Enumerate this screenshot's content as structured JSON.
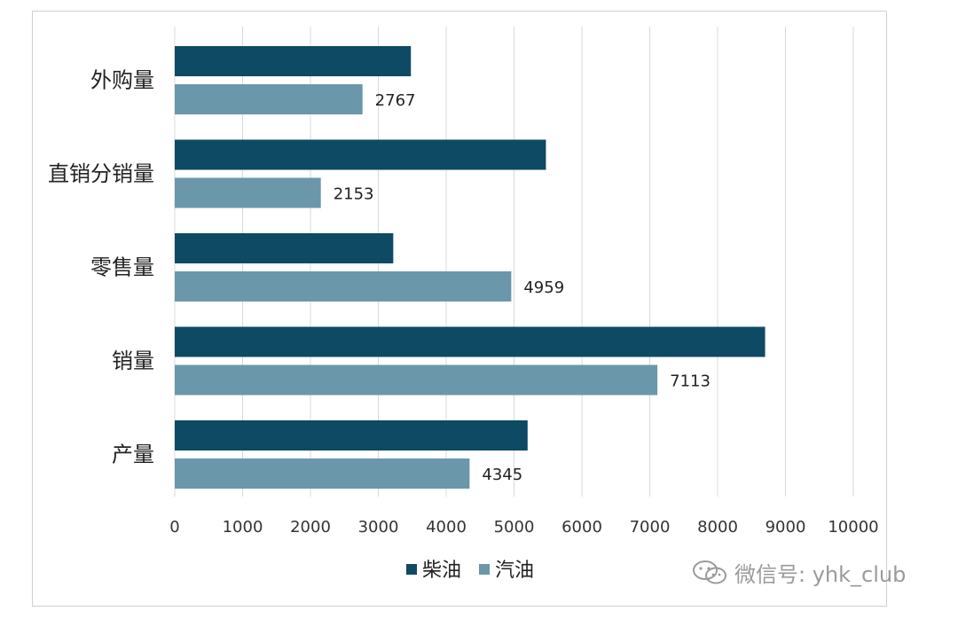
{
  "chart_data": {
    "type": "bar",
    "orientation": "horizontal",
    "categories": [
      "外购量",
      "直销分销量",
      "零售量",
      "销量",
      "产量"
    ],
    "series": [
      {
        "name": "柴油",
        "values": [
          3480,
          5470,
          3220,
          8700,
          5200
        ],
        "color": "#0e4a63"
      },
      {
        "name": "汽油",
        "values": [
          2767,
          2153,
          4959,
          7113,
          4345
        ],
        "color": "#6a97aa"
      }
    ],
    "data_labels": {
      "柴油": [
        null,
        null,
        null,
        null,
        null
      ],
      "汽油": [
        "2767",
        "2153",
        "4959",
        "7113",
        "4345"
      ]
    },
    "xlim": [
      0,
      10000
    ],
    "xticks": [
      0,
      1000,
      2000,
      3000,
      4000,
      5000,
      6000,
      7000,
      8000,
      9000,
      10000
    ],
    "grid": "vertical",
    "legend_position": "bottom"
  },
  "watermark": {
    "text": "微信号: yhk_club",
    "icon": "wechat-icon"
  }
}
